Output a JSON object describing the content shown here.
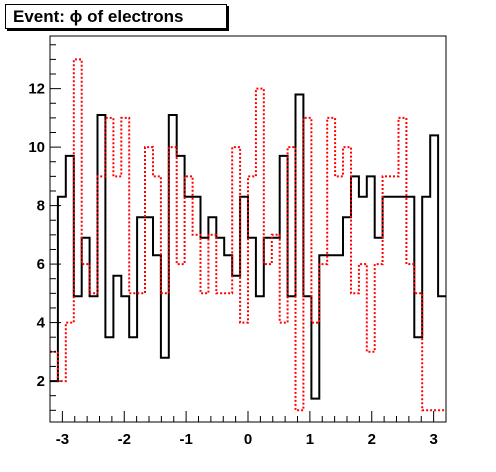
{
  "chart_data": {
    "type": "step",
    "title": "Event: ϕ of electrons",
    "xlabel": "",
    "ylabel": "",
    "xlim": [
      -3.2,
      3.2
    ],
    "ylim": [
      0.6,
      13.8
    ],
    "x_ticks": [
      -3,
      -2,
      -1,
      0,
      1,
      2,
      3
    ],
    "y_ticks": [
      2,
      4,
      6,
      8,
      10,
      12
    ],
    "bin_width": 0.128,
    "grid": false,
    "legend": "none",
    "series": [
      {
        "color": "#000000",
        "line_style": "solid",
        "values": [
          2.0,
          8.3,
          9.7,
          4.9,
          6.9,
          4.9,
          11.1,
          3.5,
          5.6,
          4.9,
          3.5,
          7.6,
          7.6,
          6.3,
          2.8,
          11.1,
          9.7,
          8.3,
          8.3,
          6.9,
          7.6,
          6.9,
          6.3,
          5.6,
          8.3,
          6.9,
          4.9,
          6.9,
          6.9,
          9.7,
          4.9,
          11.8,
          4.9,
          1.4,
          6.3,
          6.3,
          6.3,
          7.6,
          9.0,
          8.3,
          9.0,
          6.9,
          8.3,
          8.3,
          8.3,
          8.3,
          3.5,
          8.3,
          10.4,
          4.9
        ]
      },
      {
        "color": "#ff0000",
        "line_style": "dotted",
        "values": [
          3.0,
          2.0,
          4.0,
          13.0,
          6.0,
          5.0,
          9.0,
          11.0,
          9.0,
          11.0,
          5.0,
          5.0,
          10.0,
          9.0,
          5.0,
          10.0,
          6.0,
          9.0,
          7.0,
          5.0,
          7.0,
          5.0,
          5.0,
          10.0,
          4.0,
          9.0,
          12.0,
          6.0,
          7.0,
          4.0,
          10.0,
          1.0,
          11.0,
          4.0,
          6.0,
          11.0,
          9.0,
          10.0,
          5.0,
          6.0,
          3.0,
          6.0,
          9.0,
          9.0,
          11.0,
          6.0,
          5.0,
          1.0,
          1.0,
          1.0
        ]
      }
    ]
  }
}
